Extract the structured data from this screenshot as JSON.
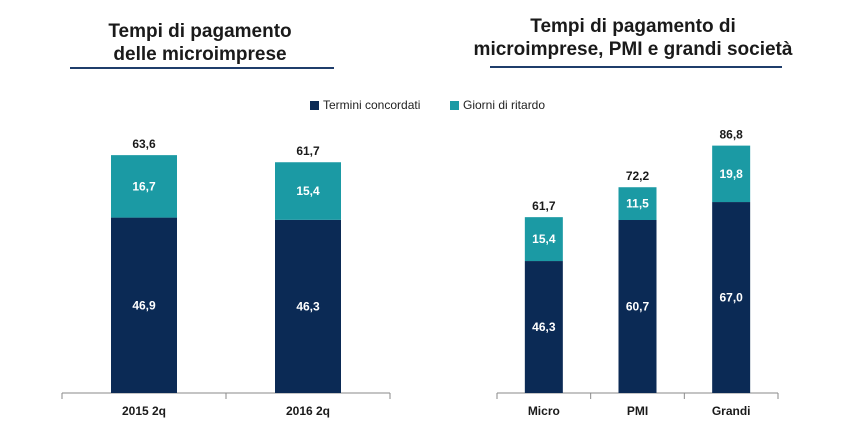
{
  "colors": {
    "base": "#0b2a55",
    "delay": "#1b9aa4",
    "axis": "#8a8a8a",
    "rule": "#1f3d6b"
  },
  "legend": {
    "base_label": "Termini concordati",
    "delay_label": "Giorni di ritardo"
  },
  "chart_data": [
    {
      "type": "bar",
      "title": "Tempi di pagamento delle microimprese",
      "title_lines": [
        "Tempi di pagamento",
        "delle microimprese"
      ],
      "stacked": true,
      "categories": [
        "2015 2q",
        "2016 2q"
      ],
      "series": [
        {
          "name": "Termini concordati",
          "values": [
            46.9,
            46.3
          ]
        },
        {
          "name": "Giorni di ritardo",
          "values": [
            16.7,
            15.4
          ]
        }
      ],
      "totals": [
        "63,6",
        "61,7"
      ],
      "segment_labels": [
        [
          "46,9",
          "46,3"
        ],
        [
          "16,7",
          "15,4"
        ]
      ],
      "ylim": [
        0,
        90
      ]
    },
    {
      "type": "bar",
      "title": "Tempi di pagamento di microimprese, PMI e grandi società",
      "title_lines": [
        "Tempi di pagamento di",
        "microimprese, PMI e grandi società"
      ],
      "stacked": true,
      "categories": [
        "Micro",
        "PMI",
        "Grandi"
      ],
      "series": [
        {
          "name": "Termini concordati",
          "values": [
            46.3,
            60.7,
            67.0
          ]
        },
        {
          "name": "Giorni di ritardo",
          "values": [
            15.4,
            11.5,
            19.8
          ]
        }
      ],
      "totals": [
        "61,7",
        "72,2",
        "86,8"
      ],
      "segment_labels": [
        [
          "46,3",
          "60,7",
          "67,0"
        ],
        [
          "15,4",
          "11,5",
          "19,8"
        ]
      ],
      "ylim": [
        0,
        90
      ]
    }
  ]
}
